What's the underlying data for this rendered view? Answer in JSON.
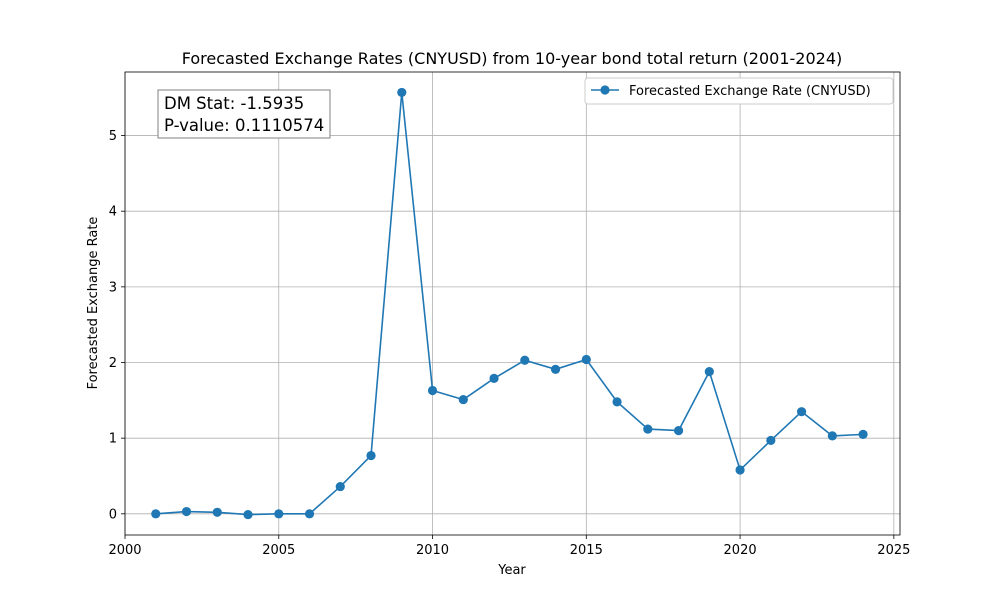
{
  "chart_data": {
    "type": "line",
    "title": "Forecasted Exchange Rates (CNYUSD) from 10-year bond total return (2001-2024)",
    "xlabel": "Year",
    "ylabel": "Forecasted Exchange Rate",
    "xlim": [
      2000,
      2025.2
    ],
    "ylim": [
      -0.28,
      5.84
    ],
    "xticks": [
      2000,
      2005,
      2010,
      2015,
      2020,
      2025
    ],
    "yticks": [
      0,
      1,
      2,
      3,
      4,
      5
    ],
    "grid": true,
    "legend_position": "top-right",
    "series": [
      {
        "name": "Forecasted Exchange Rate (CNYUSD)",
        "color": "#1f77b4",
        "x": [
          2001,
          2002,
          2003,
          2004,
          2005,
          2006,
          2007,
          2008,
          2009,
          2010,
          2011,
          2012,
          2013,
          2014,
          2015,
          2016,
          2017,
          2018,
          2019,
          2020,
          2021,
          2022,
          2023,
          2024
        ],
        "y": [
          0.0,
          0.03,
          0.02,
          -0.01,
          0.0,
          0.0,
          0.36,
          0.77,
          5.57,
          1.63,
          1.51,
          1.79,
          2.03,
          1.91,
          2.04,
          1.48,
          1.12,
          1.1,
          1.88,
          0.58,
          0.97,
          1.35,
          1.03,
          1.05
        ]
      }
    ],
    "annotation": {
      "lines": [
        "DM Stat: -1.5935",
        "P-value: 0.1110574"
      ],
      "position": "top-left"
    }
  }
}
